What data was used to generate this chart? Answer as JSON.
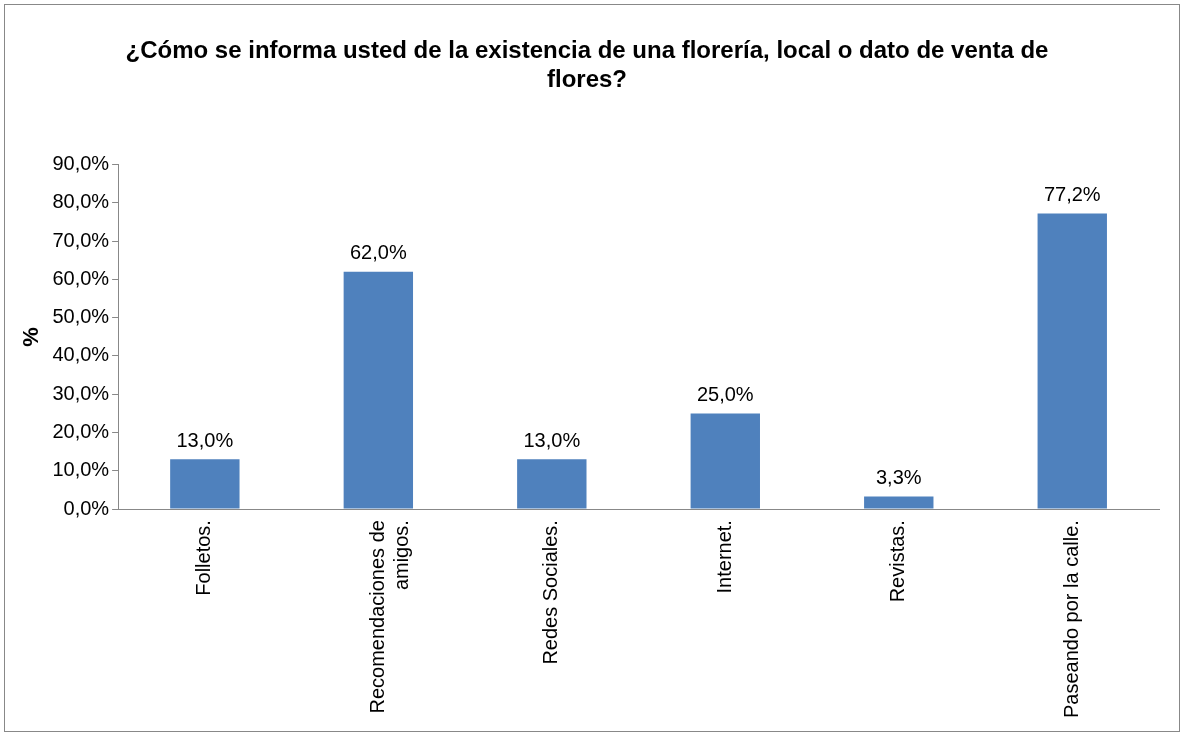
{
  "chart_data": {
    "type": "bar",
    "title": "¿Cómo se informa usted de la existencia de una florería, local o dato de venta de flores?",
    "ylabel": "%",
    "categories": [
      "Folletos.",
      "Recomendaciones de amigos.",
      "Redes Sociales.",
      "Internet.",
      "Revistas.",
      "Paseando por la calle."
    ],
    "values": [
      13.0,
      62.0,
      13.0,
      25.0,
      3.3,
      77.2
    ],
    "value_labels": [
      "13,0%",
      "62,0%",
      "13,0%",
      "25,0%",
      "3,3%",
      "77,2%"
    ],
    "color": "#4f81bd",
    "ylim": [
      0,
      90
    ],
    "yticks": [
      {
        "value": 0,
        "label": "0,0%"
      },
      {
        "value": 10,
        "label": "10,0%"
      },
      {
        "value": 20,
        "label": "20,0%"
      },
      {
        "value": 30,
        "label": "30,0%"
      },
      {
        "value": 40,
        "label": "40,0%"
      },
      {
        "value": 50,
        "label": "50,0%"
      },
      {
        "value": 60,
        "label": "60,0%"
      },
      {
        "value": 70,
        "label": "70,0%"
      },
      {
        "value": 80,
        "label": "80,0%"
      },
      {
        "value": 90,
        "label": "90,0%"
      }
    ],
    "grid": false,
    "legend": false
  }
}
